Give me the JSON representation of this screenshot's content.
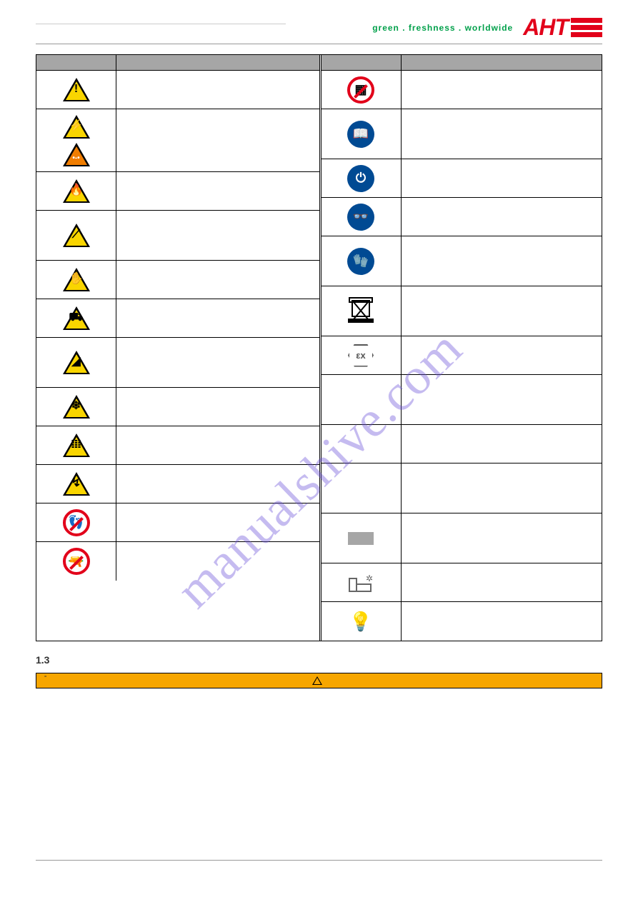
{
  "header": {
    "tagline": "green . freshness . worldwide",
    "logo_text": "AHT"
  },
  "table": {
    "left": [
      {
        "glyph": "!",
        "kind": "warn",
        "desc": "",
        "tall": false
      },
      {
        "glyph": "⚡",
        "glyph2": "•-•",
        "kind": "warn-orange",
        "desc": "",
        "tall": true
      },
      {
        "glyph": "🔥",
        "kind": "warn",
        "desc": "",
        "tall": false
      },
      {
        "glyph": "⟋",
        "kind": "warn",
        "desc": "",
        "tall": "x"
      },
      {
        "glyph": "✋",
        "kind": "warn",
        "desc": "",
        "tall": false
      },
      {
        "glyph": "⛟",
        "kind": "warn",
        "desc": "",
        "tall": false
      },
      {
        "glyph": "◢",
        "kind": "warn",
        "desc": "",
        "tall": "x"
      },
      {
        "glyph": "❄",
        "kind": "warn",
        "desc": "",
        "tall": false
      },
      {
        "glyph": "𝍖",
        "kind": "warn",
        "desc": "",
        "tall": false
      },
      {
        "glyph": "↯",
        "kind": "warn",
        "desc": "",
        "tall": false
      },
      {
        "glyph": "👣",
        "kind": "prohibit",
        "desc": "",
        "tall": false
      },
      {
        "glyph": "🔫",
        "kind": "prohibit",
        "desc": "",
        "tall": false
      }
    ],
    "right": [
      {
        "glyph": "▦",
        "kind": "prohibit",
        "desc": "",
        "tall": false
      },
      {
        "glyph": "📖",
        "kind": "mand",
        "desc": "",
        "tall": "x"
      },
      {
        "glyph": "⏻",
        "kind": "mand",
        "desc": "",
        "tall": false
      },
      {
        "glyph": "👓",
        "kind": "mand",
        "desc": "",
        "tall": false
      },
      {
        "glyph": "🧤",
        "kind": "mand",
        "desc": "",
        "tall": "x"
      },
      {
        "glyph": "",
        "kind": "weee",
        "desc": "",
        "tall": "x"
      },
      {
        "glyph": "εx",
        "kind": "hex",
        "desc": "",
        "tall": false
      },
      {
        "glyph": "",
        "kind": "empty",
        "desc": "",
        "tall": "x"
      },
      {
        "glyph": "",
        "kind": "empty",
        "desc": "",
        "tall": false
      },
      {
        "glyph": "",
        "kind": "empty",
        "desc": "",
        "tall": "x"
      },
      {
        "glyph": "",
        "kind": "greybox",
        "desc": "",
        "tall": "x"
      },
      {
        "glyph": "",
        "kind": "frost",
        "desc": "",
        "tall": false
      },
      {
        "glyph": "💡",
        "kind": "bulb",
        "desc": "",
        "tall": false
      }
    ]
  },
  "section": {
    "number": "1.3",
    "title": "",
    "bullets": [
      "",
      "",
      "",
      "",
      "",
      ""
    ]
  },
  "banner": {
    "label": ""
  },
  "watermark": "manualshive.com",
  "colors": {
    "brand_red": "#e2001a",
    "brand_green": "#00a04a",
    "warn_yellow": "#f9d500",
    "warn_orange": "#f07d00",
    "mandatory_blue": "#004a93",
    "banner_orange": "#f7a600",
    "header_grey": "#a6a6a6",
    "watermark_purple": "#6a4fd8"
  }
}
